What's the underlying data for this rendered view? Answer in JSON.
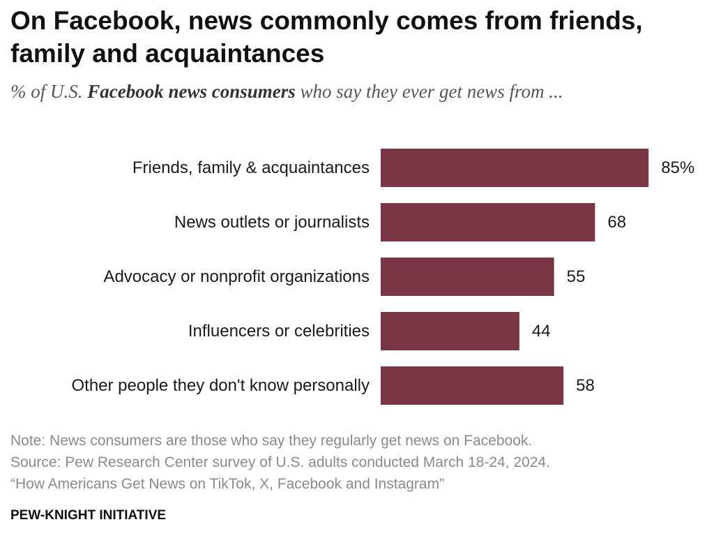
{
  "title": "On Facebook, news commonly comes from friends, family and acquaintances",
  "subtitle": {
    "prefix": "% of U.S. ",
    "emphasis": "Facebook news consumers",
    "suffix": " who say they ever get news from ..."
  },
  "chart_data": {
    "type": "bar",
    "orientation": "horizontal",
    "categories": [
      "Friends, family & acquaintances",
      "News outlets or journalists",
      "Advocacy or nonprofit organizations",
      "Influencers or celebrities",
      "Other people they don't know personally"
    ],
    "values": [
      85,
      68,
      55,
      44,
      58
    ],
    "value_labels": [
      "85%",
      "68",
      "55",
      "44",
      "58"
    ],
    "xlim": [
      0,
      100
    ],
    "grid": false,
    "bar_color": "#7a3644"
  },
  "notes": {
    "note": "Note: News consumers are those who say they regularly get news on Facebook.",
    "source": "Source: Pew Research Center survey of U.S. adults conducted March 18-24, 2024.",
    "report": "“How Americans Get News on TikTok, X, Facebook and Instagram”"
  },
  "brand": "PEW-KNIGHT INITIATIVE"
}
